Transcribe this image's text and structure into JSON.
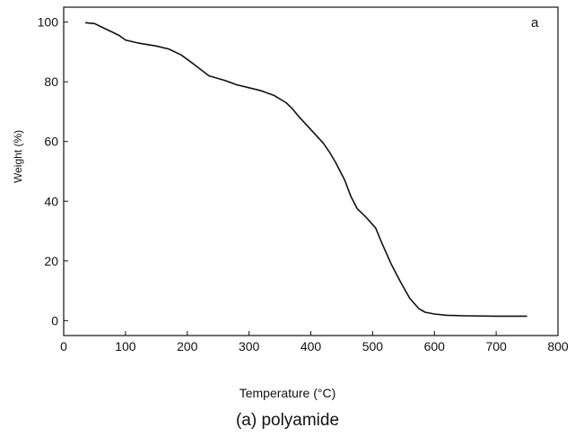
{
  "caption": "(a) polyamide",
  "chart_data": {
    "type": "line",
    "title": "",
    "panel_label": "a",
    "xlabel": "Temperature (°C)",
    "ylabel": "Weight (%)",
    "xlim": [
      0,
      800
    ],
    "ylim": [
      -5,
      105
    ],
    "xticks": [
      0,
      100,
      200,
      300,
      400,
      500,
      600,
      700,
      800
    ],
    "yticks": [
      0,
      20,
      40,
      60,
      80,
      100
    ],
    "grid": false,
    "legend": "none",
    "line_color": "#111111",
    "series": [
      {
        "x": [
          35,
          50,
          60,
          75,
          90,
          100,
          120,
          150,
          170,
          190,
          210,
          235,
          260,
          280,
          300,
          320,
          340,
          360,
          370,
          380,
          400,
          420,
          430,
          440,
          455,
          465,
          475,
          490,
          505,
          515,
          530,
          545,
          560,
          575,
          585,
          600,
          620,
          650,
          700,
          750
        ],
        "y": [
          99.8,
          99.5,
          98.5,
          97,
          95.5,
          94,
          93,
          92,
          91,
          89,
          86,
          82,
          80.5,
          79,
          78,
          77,
          75.5,
          73,
          71,
          68.5,
          64,
          59.5,
          56.5,
          53,
          47,
          41.5,
          37.5,
          34.5,
          31,
          26,
          19,
          13,
          7.5,
          4,
          2.8,
          2.2,
          1.8,
          1.6,
          1.5,
          1.5
        ]
      }
    ]
  }
}
